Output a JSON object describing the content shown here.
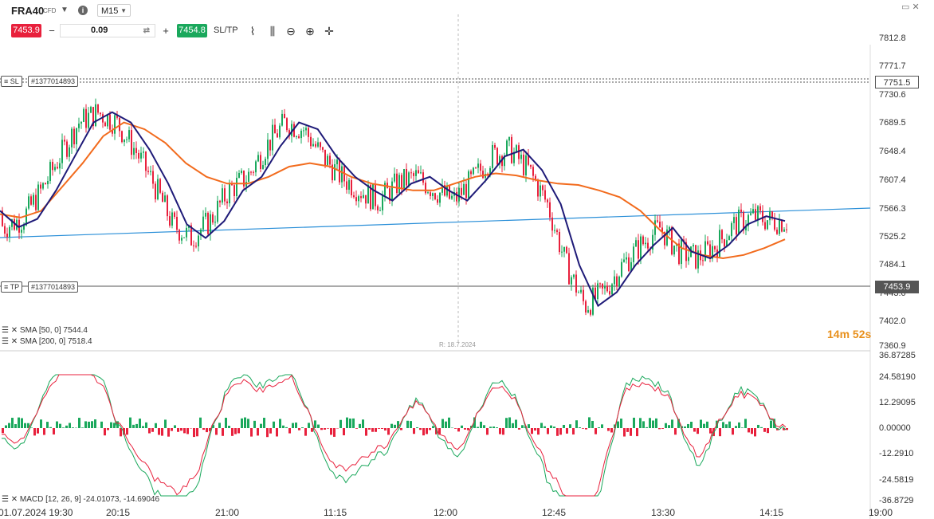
{
  "header": {
    "symbol": "FRA40",
    "instrument_type": "CFD",
    "timeframe": "M15",
    "sell_price": "7453.9",
    "quantity": "0.09",
    "buy_price": "7454.8",
    "sltp_label": "SL/TP"
  },
  "price_axis": [
    "7812.8",
    "7771.7",
    "7730.6",
    "7689.5",
    "7648.4",
    "7607.4",
    "7566.3",
    "7525.2",
    "7484.1",
    "7443.0",
    "7402.0",
    "7360.9"
  ],
  "sl_line": {
    "tag": "SL",
    "order_id": "#1377014893",
    "price": "7751.5"
  },
  "tp_line": {
    "tag": "TP",
    "order_id": "#1377014893",
    "price": "7453.9"
  },
  "indicators": {
    "sma50": "SMA [50, 0] 7544.4",
    "sma200": "SMA [200, 0] 7518.4",
    "macd": "MACD [12, 26, 9] -24.01073, -14.69046"
  },
  "countdown": {
    "minutes": "14",
    "m_unit": "m",
    "seconds": "52",
    "s_unit": "s"
  },
  "r_label": "R: 18.7.2024",
  "macd_axis": [
    "36.87285",
    "24.58190",
    "12.29095",
    "0.00000",
    "-12.2910",
    "-24.5819",
    "-36.8729"
  ],
  "time_axis": [
    "01.07.2024 19:30",
    "20:15",
    "21:00",
    "11:15",
    "12:00",
    "12:45",
    "13:30",
    "14:15",
    "19:00"
  ],
  "colors": {
    "up": "#1aa85c",
    "down": "#e8203c",
    "sma50": "#1e1a78",
    "sma200": "#f26b1d",
    "trend": "#2a8fd8"
  },
  "chart_data": {
    "type": "line",
    "title": "",
    "ylim": [
      7360.9,
      7812.8
    ],
    "series": [
      {
        "name": "SMA [50, 0]",
        "values": [
          7560,
          7536,
          7548,
          7590,
          7640,
          7690,
          7705,
          7690,
          7650,
          7600,
          7540,
          7520,
          7545,
          7590,
          7610,
          7655,
          7690,
          7680,
          7640,
          7610,
          7590,
          7575,
          7600,
          7610,
          7590,
          7575,
          7605,
          7640,
          7650,
          7620,
          7570,
          7480,
          7420,
          7440,
          7480,
          7510,
          7535,
          7500,
          7490,
          7510,
          7540,
          7552,
          7545
        ]
      },
      {
        "name": "SMA [200, 0]",
        "values": [
          7555,
          7550,
          7560,
          7595,
          7630,
          7670,
          7690,
          7680,
          7660,
          7630,
          7610,
          7600,
          7600,
          7610,
          7625,
          7630,
          7625,
          7610,
          7600,
          7595,
          7590,
          7590,
          7600,
          7610,
          7615,
          7612,
          7605,
          7600,
          7598,
          7590,
          7580,
          7560,
          7530,
          7505,
          7495,
          7490,
          7495,
          7505,
          7518
        ]
      }
    ]
  }
}
